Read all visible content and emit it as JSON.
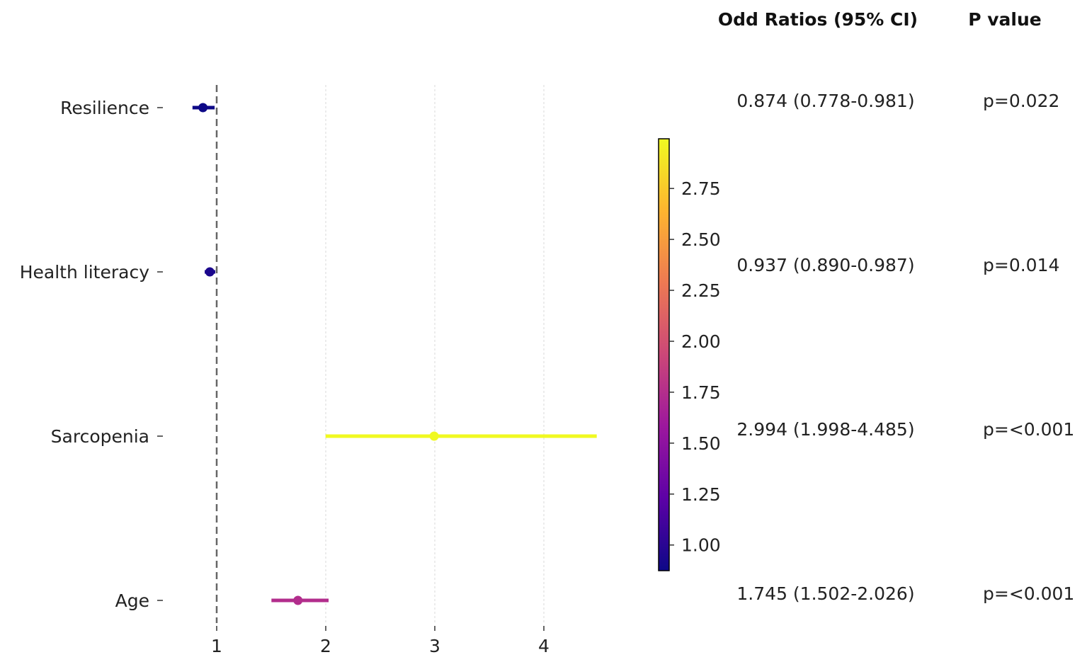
{
  "chart_data": {
    "type": "forest",
    "headers": {
      "or": "Odd Ratios (95% CI)",
      "p": "P value"
    },
    "rows": [
      {
        "label": "Resilience",
        "or": 0.874,
        "lo": 0.778,
        "hi": 0.981,
        "or_text": "0.874 (0.778-0.981)",
        "p_text": "p=0.022"
      },
      {
        "label": "Health literacy",
        "or": 0.937,
        "lo": 0.89,
        "hi": 0.987,
        "or_text": "0.937 (0.890-0.987)",
        "p_text": "p=0.014"
      },
      {
        "label": "Sarcopenia",
        "or": 2.994,
        "lo": 1.998,
        "hi": 4.485,
        "or_text": "2.994 (1.998-4.485)",
        "p_text": "p=<0.001"
      },
      {
        "label": "Age",
        "or": 1.745,
        "lo": 1.502,
        "hi": 2.026,
        "or_text": "1.745 (1.502-2.026)",
        "p_text": "p=<0.001"
      }
    ],
    "x_ticks": [
      "1",
      "2",
      "3",
      "4"
    ],
    "x_tick_values": [
      1,
      2,
      3,
      4
    ],
    "reference_line": 1,
    "colorbar": {
      "min": 0.874,
      "max": 2.994,
      "ticks": [
        1.0,
        1.25,
        1.5,
        1.75,
        2.0,
        2.25,
        2.5,
        2.75
      ],
      "tick_labels": [
        "1.00",
        "1.25",
        "1.50",
        "1.75",
        "2.00",
        "2.25",
        "2.50",
        "2.75"
      ],
      "colormap": [
        "#0d0887",
        "#5c01a6",
        "#9c179e",
        "#cc4778",
        "#ed7953",
        "#fdb42f",
        "#f0f921"
      ]
    }
  }
}
